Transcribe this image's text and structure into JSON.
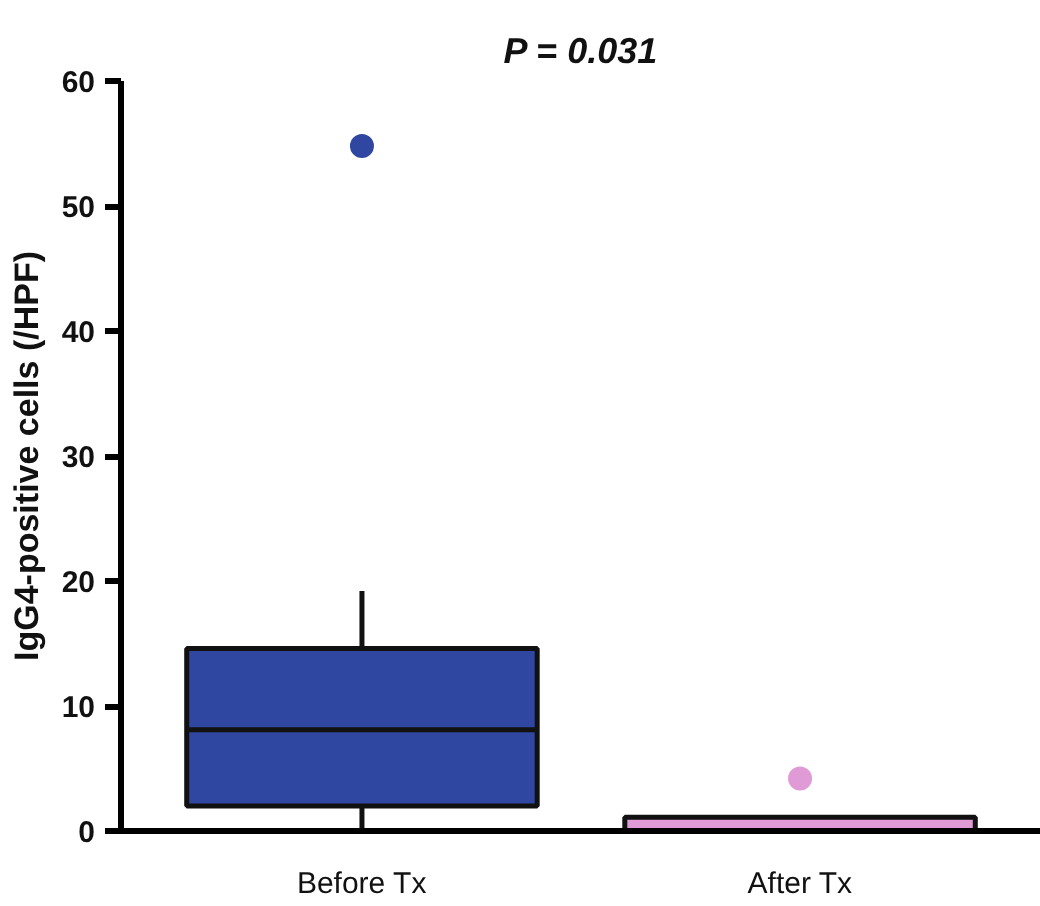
{
  "chart_data": {
    "type": "box",
    "categories": [
      "Before Tx",
      "After Tx"
    ],
    "ylabel": "IgG4-positive cells (/HPF)",
    "ylim": [
      0,
      60
    ],
    "yticks": [
      0,
      10,
      20,
      30,
      40,
      50,
      60
    ],
    "grid": false,
    "colors": [
      "#2f47a0",
      "#e09ad6"
    ],
    "boxes": [
      {
        "low": 0,
        "q1": 2.0,
        "median": 8.1,
        "q3": 14.6,
        "high": 19.2,
        "outliers": [
          54.8
        ]
      },
      {
        "low": 0,
        "q1": 0,
        "median": 0,
        "q3": 1.1,
        "high": 1.1,
        "outliers": [
          4.2
        ]
      }
    ],
    "annotations": [
      "P = 0.031"
    ]
  }
}
